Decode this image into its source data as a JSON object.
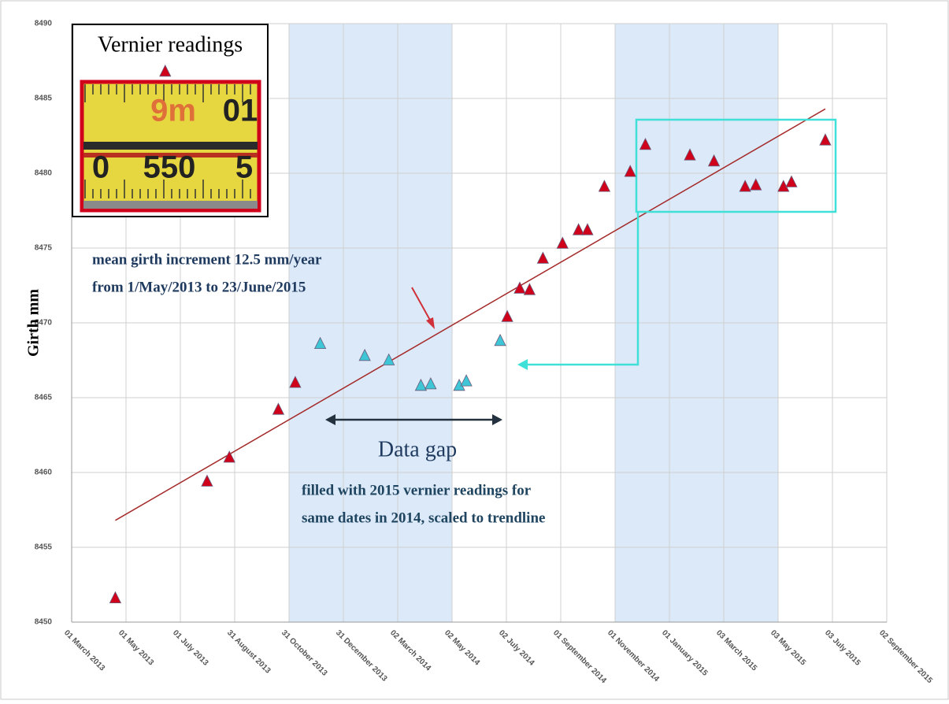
{
  "chart_data": {
    "type": "scatter",
    "y_label": "Girth mm",
    "xlim": [
      "2013-03-01",
      "2015-09-02"
    ],
    "xticks": [
      {
        "value": "2013-03-01",
        "label": "01 March 2013"
      },
      {
        "value": "2013-05-01",
        "label": "01 May 2013"
      },
      {
        "value": "2013-07-01",
        "label": "01 July 2013"
      },
      {
        "value": "2013-08-31",
        "label": "31 August 2013"
      },
      {
        "value": "2013-10-31",
        "label": "31 October 2013"
      },
      {
        "value": "2013-12-31",
        "label": "31 December 2013"
      },
      {
        "value": "2014-03-02",
        "label": "02 March 2014"
      },
      {
        "value": "2014-05-02",
        "label": "02 May 2014"
      },
      {
        "value": "2014-07-02",
        "label": "02 July 2014"
      },
      {
        "value": "2014-09-01",
        "label": "01 September 2014"
      },
      {
        "value": "2014-11-01",
        "label": "01 November 2014"
      },
      {
        "value": "2015-01-01",
        "label": "01 January 2015"
      },
      {
        "value": "2015-03-03",
        "label": "03 March 2015"
      },
      {
        "value": "2015-05-03",
        "label": "03 May 2015"
      },
      {
        "value": "2015-07-03",
        "label": "03 July 2015"
      },
      {
        "value": "2015-09-02",
        "label": "02 September 2015"
      }
    ],
    "ylim": [
      8450,
      8490
    ],
    "yticks": [
      8450,
      8455,
      8460,
      8465,
      8470,
      8475,
      8480,
      8485,
      8490
    ],
    "grid": true,
    "shaded_ranges": [
      [
        "2013-10-31",
        "2014-05-02"
      ],
      [
        "2014-11-01",
        "2015-05-03"
      ]
    ],
    "shade_color": "#dbe9f8",
    "series": [
      {
        "color": "#d0021b",
        "x": [
          "2013-04-19",
          "2013-06-14",
          "2013-07-31",
          "2013-08-25",
          "2013-10-19",
          "2013-11-07",
          "2014-07-03",
          "2014-07-17",
          "2014-07-28",
          "2014-08-12",
          "2014-09-03",
          "2014-09-21",
          "2014-10-01",
          "2014-10-20",
          "2014-11-18",
          "2014-12-05",
          "2015-01-24",
          "2015-02-20",
          "2015-03-27",
          "2015-04-08",
          "2015-05-09",
          "2015-05-18",
          "2015-06-25"
        ],
        "values": [
          8451.6,
          8486.8,
          8459.4,
          8461.0,
          8464.2,
          8466.0,
          8470.4,
          8472.3,
          8472.2,
          8474.3,
          8475.3,
          8476.2,
          8476.2,
          8479.1,
          8480.1,
          8481.9,
          8481.2,
          8480.8,
          8479.1,
          8479.2,
          8479.1,
          8479.4,
          8482.2
        ]
      },
      {
        "color": "#3fc6d6",
        "x": [
          "2013-12-05",
          "2014-01-24",
          "2014-02-20",
          "2014-03-28",
          "2014-04-08",
          "2014-05-10",
          "2014-05-18",
          "2014-06-25"
        ],
        "values": [
          8468.6,
          8467.8,
          8467.5,
          8465.8,
          8465.9,
          8465.8,
          8466.1,
          8468.8
        ]
      }
    ],
    "trendline": {
      "color": "#a52a2a",
      "x": [
        "2013-04-19",
        "2015-06-25"
      ],
      "values": [
        8456.8,
        8484.3
      ]
    },
    "annotations": {
      "trend_line1": "mean girth increment 12.5 mm/year",
      "trend_line2": "from 1/May/2013 to 23/June/2015",
      "gap": "Data gap",
      "fill_line1": "filled with 2015 vernier readings for",
      "fill_line2": "same dates in 2014, scaled to trendline"
    },
    "inset": {
      "title": "Vernier readings",
      "upper_labels": [
        "9m",
        "01"
      ],
      "lower_labels": [
        "0",
        "550",
        "5"
      ]
    }
  }
}
